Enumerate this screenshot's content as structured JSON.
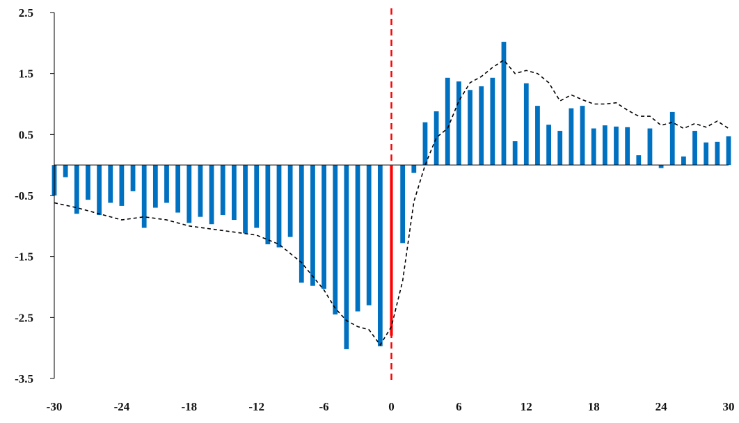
{
  "chart_data": {
    "type": "bar",
    "title": "",
    "xlabel": "",
    "ylabel": "",
    "xlim": [
      -30,
      30
    ],
    "ylim": [
      -3.5,
      2.5
    ],
    "x_ticks": [
      -30,
      -24,
      -18,
      -12,
      -6,
      0,
      6,
      12,
      18,
      24,
      30
    ],
    "y_ticks": [
      2.5,
      1.5,
      0.5,
      -0.5,
      -1.5,
      -2.5,
      -3.5
    ],
    "y_tick_labels": [
      "2.5",
      "1.5",
      "0.5",
      "-0.5",
      "-1.5",
      "-2.5",
      "-3.5"
    ],
    "x_tick_labels": [
      "-30",
      "-24",
      "-18",
      "-12",
      "-6",
      "0",
      "6",
      "12",
      "18",
      "24",
      "30"
    ],
    "grid": false,
    "legend": "none",
    "event_x": 0,
    "colors": {
      "bars": "#0070C0",
      "event_bar": "#FF0000",
      "event_line": "#FF0000",
      "trend_line": "#000000",
      "axis": "#000000"
    },
    "series": [
      {
        "type": "bar",
        "x": [
          -30,
          -29,
          -28,
          -27,
          -26,
          -25,
          -24,
          -23,
          -22,
          -21,
          -20,
          -19,
          -18,
          -17,
          -16,
          -15,
          -14,
          -13,
          -12,
          -11,
          -10,
          -9,
          -8,
          -7,
          -6,
          -5,
          -4,
          -3,
          -2,
          -1,
          0,
          1,
          2,
          3,
          4,
          5,
          6,
          7,
          8,
          9,
          10,
          11,
          12,
          13,
          14,
          15,
          16,
          17,
          18,
          19,
          20,
          21,
          22,
          23,
          24,
          25,
          26,
          27,
          28,
          29,
          30
        ],
        "values": [
          -0.5,
          -0.2,
          -0.8,
          -0.57,
          -0.82,
          -0.62,
          -0.67,
          -0.43,
          -1.03,
          -0.7,
          -0.62,
          -0.78,
          -0.95,
          -0.85,
          -0.97,
          -0.82,
          -0.9,
          -1.12,
          -1.03,
          -1.3,
          -1.35,
          -1.18,
          -1.93,
          -1.98,
          -2.03,
          -2.45,
          -3.02,
          -2.4,
          -2.3,
          -2.97,
          -2.8,
          -1.28,
          -0.13,
          0.7,
          0.88,
          1.43,
          1.37,
          1.23,
          1.29,
          1.43,
          2.02,
          0.39,
          1.34,
          0.97,
          0.66,
          0.56,
          0.93,
          0.97,
          0.6,
          0.65,
          0.63,
          0.62,
          0.16,
          0.6,
          -0.05,
          0.87,
          0.14,
          0.56,
          0.37,
          0.38,
          0.47
        ]
      },
      {
        "type": "line",
        "style": "dashed",
        "x": [
          -30,
          -28,
          -26,
          -24,
          -22,
          -20,
          -18,
          -16,
          -14,
          -12,
          -10,
          -8,
          -6,
          -5,
          -4,
          -3,
          -2,
          -1,
          0,
          1,
          2,
          3,
          4,
          5,
          6,
          7,
          8,
          9,
          10,
          11,
          12,
          13,
          14,
          15,
          16,
          17,
          18,
          19,
          20,
          21,
          22,
          23,
          24,
          25,
          26,
          27,
          28,
          29,
          30
        ],
        "values": [
          -0.62,
          -0.7,
          -0.8,
          -0.9,
          -0.85,
          -0.9,
          -1.0,
          -1.05,
          -1.1,
          -1.15,
          -1.3,
          -1.6,
          -2.05,
          -2.35,
          -2.55,
          -2.65,
          -2.7,
          -2.95,
          -2.65,
          -1.9,
          -0.6,
          0.0,
          0.45,
          0.6,
          1.05,
          1.35,
          1.45,
          1.6,
          1.72,
          1.5,
          1.55,
          1.5,
          1.35,
          1.05,
          1.15,
          1.07,
          1.0,
          1.0,
          1.02,
          0.9,
          0.8,
          0.8,
          0.65,
          0.7,
          0.6,
          0.68,
          0.62,
          0.72,
          0.6
        ]
      }
    ]
  }
}
